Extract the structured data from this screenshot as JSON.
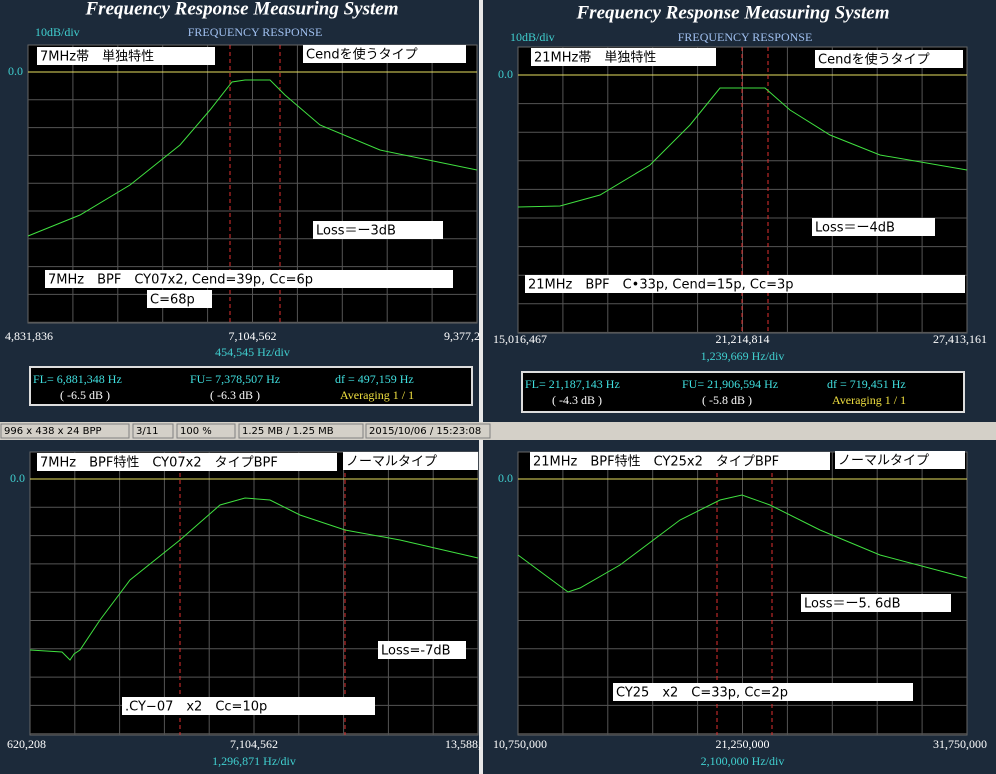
{
  "panels": [
    {
      "title": "Frequency Response Measuring System",
      "scale": "10dB/div",
      "mode": "FREQUENCY RESPONSE",
      "ref": "0.0",
      "notes": [
        "7MHz帯　単独特性",
        "Cendを使うタイプ",
        "Loss＝ー3dB",
        "7MHz　BPF　CY07x2, Cend=39p, Cc=6p",
        "C=68p"
      ],
      "x_labels": [
        "4,831,836",
        "7,104,562",
        "9,377,2"
      ],
      "span": "454,545  Hz/div",
      "readout": {
        "fl": "FL= 6,881,348  Hz",
        "fu": "FU= 7,378,507  Hz",
        "df": "df = 497,159  Hz",
        "fl_db": "( -6.5 dB )",
        "fu_db": "( -6.3 dB )",
        "avg": "Averaging   1 / 1"
      }
    },
    {
      "title": "Frequency Response Measuring System",
      "scale": "10dB/div",
      "mode": "FREQUENCY RESPONSE",
      "ref": "0.0",
      "notes": [
        "21MHz帯　単独特性",
        "Cendを使うタイプ",
        "Loss＝ー4dB",
        "21MHz　BPF　C•33p, Cend=15p, Cc=3p"
      ],
      "x_labels": [
        "15,016,467",
        "21,214,814",
        "27,413,161"
      ],
      "span": "1,239,669  Hz/div",
      "readout": {
        "fl": "FL= 21,187,143  Hz",
        "fu": "FU= 21,906,594  Hz",
        "df": "df = 719,451  Hz",
        "fl_db": "( -4.3 dB )",
        "fu_db": "( -5.8 dB )",
        "avg": "Averaging   1 / 1"
      }
    },
    {
      "ref": "0.0",
      "notes": [
        "7MHz　BPF特性　CY07x2　タイプBPF",
        "ノーマルタイプ",
        "Loss=-7dB",
        ".CY−07　x2　Cc=10p"
      ],
      "x_labels": [
        "620,208",
        "7,104,562",
        "13,588,"
      ],
      "span": "1,296,871  Hz/div"
    },
    {
      "ref": "0.0",
      "notes": [
        "21MHz　BPF特性　CY25x2　タイプBPF",
        "ノーマルタイプ",
        "Loss＝ー5. 6dB",
        "CY25　x2　C=33p, Cc=2p"
      ],
      "x_labels": [
        "10,750,000",
        "21,250,000",
        "31,750,000"
      ],
      "span": "2,100,000  Hz/div"
    }
  ],
  "status": [
    "996 x 438 x 24 BPP",
    "3/11",
    "100 %",
    "1.25 MB / 1.25 MB",
    "2015/10/06 / 15:23:08"
  ]
}
